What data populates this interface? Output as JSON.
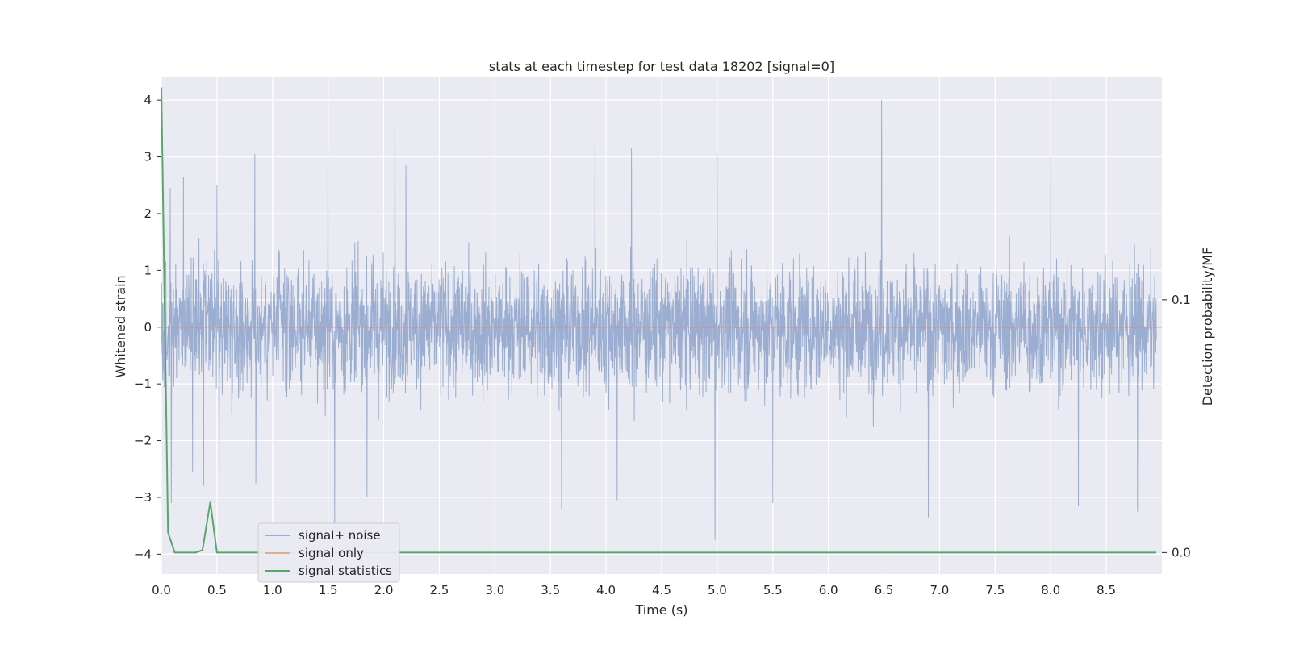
{
  "chart_data": {
    "type": "line",
    "title": "stats at each timestep for test data 18202 [signal=0]",
    "xlabel": "Time (s)",
    "ylabel": "Whitened strain",
    "ylabel_right": "Detection probability/MF",
    "xlim": [
      0,
      9.0
    ],
    "ylim": [
      -4.35,
      4.4
    ],
    "ylim_right": [
      -0.0085,
      0.188
    ],
    "x_ticks": [
      "0.0",
      "0.5",
      "1.0",
      "1.5",
      "2.0",
      "2.5",
      "3.0",
      "3.5",
      "4.0",
      "4.5",
      "5.0",
      "5.5",
      "6.0",
      "6.5",
      "7.0",
      "7.5",
      "8.0",
      "8.5"
    ],
    "y_ticks": [
      "−4",
      "−3",
      "−2",
      "−1",
      "0",
      "1",
      "2",
      "3",
      "4"
    ],
    "y_ticks_right": [
      "0.0",
      "0.1"
    ],
    "grid": true,
    "legend_position": "lower-left",
    "colors": {
      "noise": "#4c72b0",
      "signal": "#dd8452",
      "stats": "#55a868",
      "plot_bg": "#eaeaf2",
      "grid": "#ffffff"
    },
    "series": [
      {
        "name": "signal+ noise",
        "axis": "left",
        "description_of_extent": "dense noise band, mostly between -2 and 2",
        "spikes": [
          {
            "x": 0.08,
            "y": 2.45
          },
          {
            "x": 0.09,
            "y": -3.1
          },
          {
            "x": 0.2,
            "y": 2.65
          },
          {
            "x": 0.28,
            "y": -2.55
          },
          {
            "x": 0.38,
            "y": -2.8
          },
          {
            "x": 0.5,
            "y": 2.5
          },
          {
            "x": 0.52,
            "y": -2.6
          },
          {
            "x": 0.84,
            "y": 3.05
          },
          {
            "x": 0.85,
            "y": -2.75
          },
          {
            "x": 1.5,
            "y": 3.3
          },
          {
            "x": 1.56,
            "y": -3.6
          },
          {
            "x": 1.85,
            "y": -3.0
          },
          {
            "x": 2.1,
            "y": 3.55
          },
          {
            "x": 2.2,
            "y": 2.85
          },
          {
            "x": 3.6,
            "y": -3.2
          },
          {
            "x": 3.9,
            "y": 3.25
          },
          {
            "x": 4.1,
            "y": -3.05
          },
          {
            "x": 4.23,
            "y": 3.15
          },
          {
            "x": 4.98,
            "y": -3.75
          },
          {
            "x": 5.0,
            "y": 3.05
          },
          {
            "x": 5.5,
            "y": -3.1
          },
          {
            "x": 6.48,
            "y": 4.0
          },
          {
            "x": 6.9,
            "y": -3.35
          },
          {
            "x": 8.0,
            "y": 3.0
          },
          {
            "x": 8.25,
            "y": -3.15
          },
          {
            "x": 8.78,
            "y": -3.25
          }
        ]
      },
      {
        "name": "signal only",
        "axis": "left",
        "x": [
          0.0,
          9.0
        ],
        "y": [
          0.0,
          0.0
        ]
      },
      {
        "name": "signal statistics",
        "axis": "right",
        "x": [
          0.0,
          0.06,
          0.12,
          0.31,
          0.37,
          0.44,
          0.5,
          8.95
        ],
        "y": [
          0.184,
          0.008,
          0.0,
          0.0,
          0.001,
          0.02,
          0.0,
          0.0
        ]
      }
    ]
  }
}
